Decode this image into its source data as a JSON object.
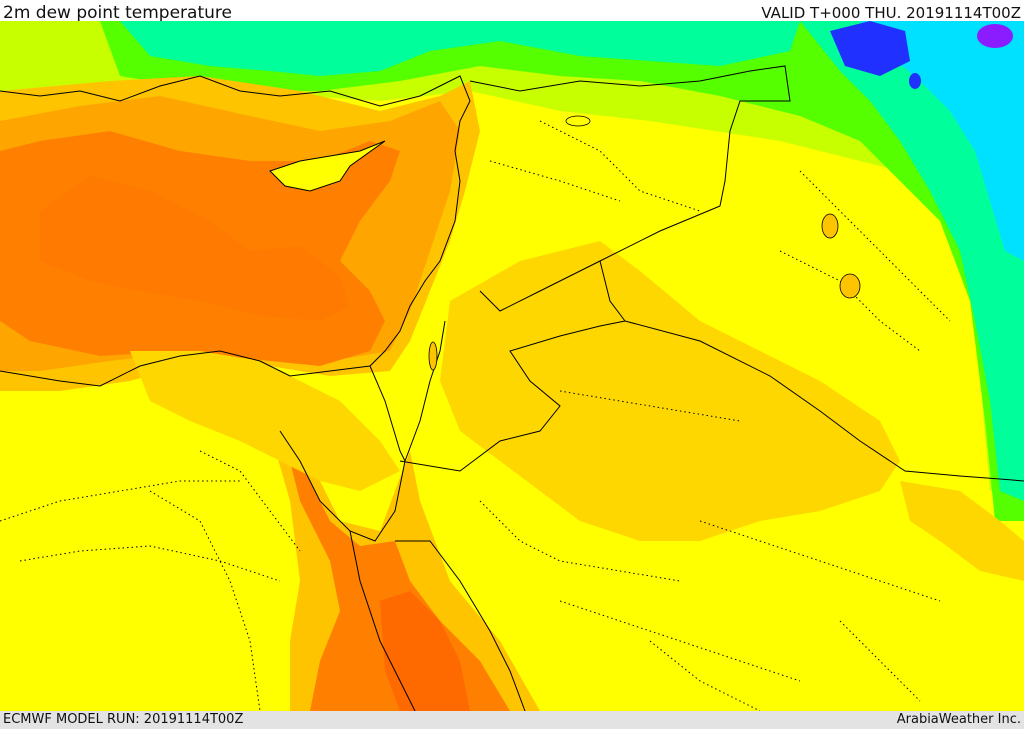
{
  "header": {
    "title": "2m dew point temperature",
    "valid_time": "VALID T+000 THU. 20191114T00Z"
  },
  "footer": {
    "model_run": "ECMWF MODEL RUN: 20191114T00Z",
    "credit": "ArabiaWeather Inc."
  },
  "colors": {
    "deep_orange": "#ff6a00",
    "orange": "#ff8000",
    "light_orange": "#ffa500",
    "amber": "#ffc400",
    "gold": "#ffd700",
    "yellow": "#ffff00",
    "yellow_green": "#c8ff00",
    "green": "#55ff00",
    "cyan_green": "#00ff9a",
    "cyan": "#00e0ff",
    "blue": "#2030ff",
    "purple": "#8a1cff",
    "land_yellow": "#fff800",
    "border_line": "#000000"
  }
}
